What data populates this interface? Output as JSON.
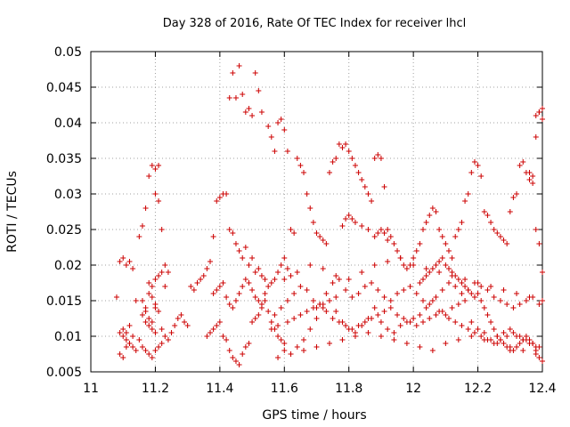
{
  "chart_data": {
    "type": "scatter",
    "title": "Day 328 of 2016, Rate Of TEC Index for receiver lhcl",
    "xlabel": "GPS time / hours",
    "ylabel": "ROTI / TECUs",
    "xlim": [
      11,
      12.4
    ],
    "ylim": [
      0.005,
      0.05
    ],
    "xticks": [
      "11",
      "11.2",
      "11.4",
      "11.6",
      "11.8",
      "12",
      "12.2",
      "12.4"
    ],
    "yticks": [
      "0.005",
      "0.01",
      "0.015",
      "0.02",
      "0.025",
      "0.03",
      "0.035",
      "0.04",
      "0.045",
      "0.05"
    ],
    "grid": true,
    "marker": "+",
    "color": "#cc0000",
    "series": [
      {
        "name": "ROTI",
        "x": [
          11.08,
          11.09,
          11.1,
          11.11,
          11.12,
          11.13,
          11.14,
          11.09,
          11.1,
          11.11,
          11.12,
          11.13,
          11.14,
          11.1,
          11.11,
          11.12,
          11.13,
          11.09,
          11.1,
          11.11,
          11.12,
          11.15,
          11.16,
          11.17,
          11.18,
          11.19,
          11.2,
          11.21,
          11.16,
          11.17,
          11.18,
          11.19,
          11.2,
          11.17,
          11.18,
          11.19,
          11.2,
          11.15,
          11.16,
          11.17,
          11.18,
          11.19,
          11.2,
          11.21,
          11.22,
          11.16,
          11.17,
          11.18,
          11.19,
          11.2,
          11.21,
          11.18,
          11.19,
          11.2,
          11.21,
          11.22,
          11.23,
          11.2,
          11.21,
          11.22,
          11.23,
          11.24,
          11.22,
          11.23,
          11.24,
          11.25,
          11.26,
          11.27,
          11.28,
          11.29,
          11.3,
          11.31,
          11.32,
          11.33,
          11.34,
          11.35,
          11.36,
          11.37,
          11.38,
          11.39,
          11.4,
          11.41,
          11.42,
          11.43,
          11.44,
          11.45,
          11.46,
          11.47,
          11.48,
          11.49,
          11.5,
          11.51,
          11.52,
          11.53,
          11.54,
          11.43,
          11.44,
          11.45,
          11.46,
          11.47,
          11.48,
          11.49,
          11.5,
          11.51,
          11.52,
          11.53,
          11.36,
          11.37,
          11.38,
          11.39,
          11.4,
          11.41,
          11.42,
          11.43,
          11.44,
          11.45,
          11.46,
          11.47,
          11.48,
          11.49,
          11.5,
          11.51,
          11.52,
          11.53,
          11.54,
          11.55,
          11.56,
          11.57,
          11.58,
          11.59,
          11.6,
          11.38,
          11.39,
          11.4,
          11.41,
          11.42,
          11.43,
          11.44,
          11.45,
          11.46,
          11.47,
          11.48,
          11.49,
          11.5,
          11.51,
          11.52,
          11.53,
          11.54,
          11.55,
          11.56,
          11.57,
          11.58,
          11.59,
          11.6,
          11.61,
          11.62,
          11.55,
          11.56,
          11.57,
          11.58,
          11.59,
          11.6,
          11.61,
          11.62,
          11.63,
          11.64,
          11.65,
          11.66,
          11.67,
          11.68,
          11.69,
          11.7,
          11.71,
          11.72,
          11.73,
          11.74,
          11.75,
          11.76,
          11.77,
          11.78,
          11.79,
          11.8,
          11.81,
          11.82,
          11.83,
          11.84,
          11.85,
          11.86,
          11.87,
          11.88,
          11.89,
          11.9,
          11.91,
          11.92,
          11.93,
          11.94,
          11.95,
          11.96,
          11.97,
          11.98,
          11.99,
          12.0,
          12.01,
          12.02,
          12.03,
          12.04,
          12.05,
          12.06,
          12.07,
          12.08,
          12.09,
          12.1,
          12.11,
          12.12,
          12.13,
          12.14,
          12.15,
          12.16,
          12.17,
          12.18,
          12.19,
          12.2,
          12.21,
          12.22,
          12.23,
          12.24,
          12.25,
          12.26,
          12.27,
          12.28,
          12.29,
          12.3,
          12.31,
          12.32,
          12.33,
          12.34,
          12.35,
          12.36,
          12.37,
          12.38,
          12.39,
          12.4,
          11.56,
          11.58,
          11.6,
          11.62,
          11.64,
          11.66,
          11.68,
          11.7,
          11.72,
          11.74,
          11.76,
          11.78,
          11.8,
          11.82,
          11.84,
          11.86,
          11.88,
          11.9,
          11.92,
          11.94,
          11.96,
          11.98,
          12.0,
          12.02,
          12.04,
          12.06,
          12.08,
          12.1,
          12.12,
          12.14,
          12.16,
          12.18,
          12.2,
          12.22,
          12.24,
          12.26,
          12.28,
          12.3,
          12.32,
          12.34,
          12.36,
          12.38,
          11.57,
          11.59,
          11.61,
          11.63,
          11.65,
          11.67,
          11.69,
          11.71,
          11.73,
          11.75,
          11.77,
          11.79,
          11.81,
          11.83,
          11.85,
          11.87,
          11.89,
          11.91,
          11.93,
          11.95,
          11.97,
          11.99,
          12.01,
          12.03,
          12.05,
          12.07,
          12.09,
          12.11,
          12.13,
          12.15,
          12.17,
          12.19,
          12.21,
          12.23,
          12.25,
          12.27,
          12.29,
          12.31,
          12.33,
          12.35,
          12.37,
          12.39,
          11.58,
          11.62,
          11.66,
          11.7,
          11.74,
          11.78,
          11.82,
          11.86,
          11.9,
          11.94,
          11.98,
          12.02,
          12.06,
          12.1,
          12.14,
          12.18,
          12.22,
          12.26,
          12.3,
          12.34,
          12.38,
          11.6,
          11.64,
          11.68,
          11.72,
          11.76,
          11.8,
          11.84,
          11.88,
          11.92,
          11.96,
          12.0,
          12.04,
          12.08,
          12.12,
          12.16,
          12.2,
          12.24,
          12.28,
          12.32,
          12.36,
          12.4,
          11.61,
          11.63,
          11.65,
          11.67,
          11.69,
          11.71,
          11.73,
          11.75,
          11.77,
          11.79,
          11.81,
          11.83,
          11.85,
          11.87,
          11.89,
          11.91,
          11.93,
          11.95,
          11.97,
          11.99,
          12.01,
          12.03,
          12.05,
          12.07,
          12.09,
          12.11,
          12.13,
          12.15,
          12.17,
          12.19,
          12.21,
          12.23,
          12.25,
          12.27,
          12.29,
          12.31,
          12.33,
          12.35,
          12.37,
          12.39,
          12.2,
          12.21,
          12.22,
          12.23,
          12.24,
          12.25,
          12.26,
          12.27,
          12.28,
          12.29,
          12.3,
          12.31,
          12.32,
          12.33,
          12.34,
          12.35,
          12.36,
          12.37,
          12.38,
          12.39,
          12.4,
          12.36,
          12.37,
          12.38,
          12.39,
          12.4,
          12.38,
          12.39,
          12.4,
          11.78,
          11.79,
          11.8,
          11.81,
          11.82,
          11.84,
          11.86,
          11.88,
          11.89,
          11.9,
          11.91,
          11.92,
          11.7,
          11.72,
          11.74,
          11.76,
          12.02,
          12.03,
          12.04,
          12.05,
          12.06,
          12.07,
          12.08,
          12.09,
          12.1,
          12.11,
          12.12,
          12.13,
          12.14,
          12.15,
          12.16,
          12.17,
          12.18,
          12.19
        ],
        "y": [
          0.0155,
          0.0205,
          0.021,
          0.02,
          0.0205,
          0.0195,
          0.015,
          0.0105,
          0.01,
          0.0095,
          0.009,
          0.0085,
          0.008,
          0.011,
          0.0105,
          0.0115,
          0.01,
          0.0075,
          0.007,
          0.0085,
          0.009,
          0.024,
          0.0255,
          0.028,
          0.0325,
          0.034,
          0.0335,
          0.034,
          0.015,
          0.014,
          0.016,
          0.0155,
          0.0145,
          0.012,
          0.0115,
          0.011,
          0.0105,
          0.0095,
          0.0085,
          0.008,
          0.0075,
          0.007,
          0.008,
          0.0085,
          0.009,
          0.013,
          0.0135,
          0.0125,
          0.012,
          0.014,
          0.0135,
          0.0175,
          0.017,
          0.018,
          0.0185,
          0.019,
          0.017,
          0.03,
          0.029,
          0.025,
          0.02,
          0.019,
          0.011,
          0.01,
          0.0095,
          0.0105,
          0.0115,
          0.0125,
          0.013,
          0.012,
          0.0115,
          0.017,
          0.0165,
          0.0175,
          0.018,
          0.0185,
          0.0195,
          0.0205,
          0.024,
          0.029,
          0.0295,
          0.03,
          0.03,
          0.025,
          0.0245,
          0.023,
          0.022,
          0.021,
          0.0225,
          0.02,
          0.021,
          0.019,
          0.0195,
          0.0185,
          0.018,
          0.0435,
          0.047,
          0.0435,
          0.048,
          0.044,
          0.0415,
          0.042,
          0.041,
          0.047,
          0.0445,
          0.0415,
          0.01,
          0.0105,
          0.011,
          0.0115,
          0.012,
          0.01,
          0.0095,
          0.008,
          0.007,
          0.0065,
          0.006,
          0.0075,
          0.0085,
          0.009,
          0.012,
          0.0125,
          0.013,
          0.014,
          0.015,
          0.0135,
          0.012,
          0.011,
          0.01,
          0.0095,
          0.009,
          0.016,
          0.0165,
          0.017,
          0.0175,
          0.0155,
          0.0145,
          0.014,
          0.015,
          0.016,
          0.017,
          0.018,
          0.0175,
          0.0165,
          0.0155,
          0.015,
          0.0145,
          0.016,
          0.017,
          0.0175,
          0.018,
          0.019,
          0.02,
          0.021,
          0.0195,
          0.0185,
          0.0395,
          0.038,
          0.036,
          0.04,
          0.0405,
          0.039,
          0.036,
          0.025,
          0.0245,
          0.035,
          0.034,
          0.033,
          0.03,
          0.028,
          0.026,
          0.0245,
          0.024,
          0.0235,
          0.023,
          0.033,
          0.0345,
          0.035,
          0.037,
          0.0365,
          0.037,
          0.036,
          0.035,
          0.034,
          0.033,
          0.032,
          0.031,
          0.03,
          0.029,
          0.035,
          0.0355,
          0.035,
          0.031,
          0.025,
          0.024,
          0.023,
          0.022,
          0.021,
          0.02,
          0.0195,
          0.02,
          0.021,
          0.022,
          0.023,
          0.025,
          0.026,
          0.027,
          0.028,
          0.0275,
          0.025,
          0.024,
          0.023,
          0.022,
          0.021,
          0.024,
          0.025,
          0.026,
          0.029,
          0.03,
          0.033,
          0.0345,
          0.034,
          0.0325,
          0.0275,
          0.027,
          0.026,
          0.025,
          0.0245,
          0.024,
          0.0235,
          0.023,
          0.0275,
          0.0295,
          0.03,
          0.034,
          0.0345,
          0.033,
          0.032,
          0.0315,
          0.041,
          0.0415,
          0.042,
          0.011,
          0.0115,
          0.008,
          0.0075,
          0.0085,
          0.0095,
          0.011,
          0.0125,
          0.014,
          0.015,
          0.0135,
          0.012,
          0.011,
          0.0105,
          0.0115,
          0.0125,
          0.014,
          0.012,
          0.011,
          0.0105,
          0.0115,
          0.012,
          0.0125,
          0.013,
          0.014,
          0.015,
          0.0135,
          0.013,
          0.014,
          0.0145,
          0.015,
          0.012,
          0.011,
          0.0105,
          0.0095,
          0.01,
          0.0105,
          0.011,
          0.01,
          0.0095,
          0.009,
          0.0085,
          0.013,
          0.014,
          0.015,
          0.016,
          0.017,
          0.0165,
          0.015,
          0.0145,
          0.016,
          0.0175,
          0.018,
          0.0165,
          0.0155,
          0.016,
          0.017,
          0.0175,
          0.0165,
          0.0155,
          0.015,
          0.016,
          0.0165,
          0.017,
          0.016,
          0.015,
          0.0145,
          0.0155,
          0.0165,
          0.0175,
          0.017,
          0.016,
          0.0165,
          0.0175,
          0.017,
          0.0165,
          0.0155,
          0.015,
          0.0145,
          0.014,
          0.0145,
          0.015,
          0.0155,
          0.0145,
          0.007,
          0.0075,
          0.008,
          0.0085,
          0.009,
          0.0095,
          0.01,
          0.0105,
          0.01,
          0.0095,
          0.009,
          0.0085,
          0.008,
          0.009,
          0.0095,
          0.01,
          0.0095,
          0.009,
          0.0085,
          0.008,
          0.0075,
          0.018,
          0.019,
          0.02,
          0.0195,
          0.0185,
          0.018,
          0.019,
          0.02,
          0.0205,
          0.021,
          0.02,
          0.0195,
          0.019,
          0.0185,
          0.018,
          0.0175,
          0.017,
          0.0165,
          0.016,
          0.0155,
          0.015,
          0.012,
          0.0125,
          0.013,
          0.0135,
          0.014,
          0.0145,
          0.0135,
          0.0125,
          0.012,
          0.0115,
          0.011,
          0.0115,
          0.012,
          0.0125,
          0.013,
          0.0135,
          0.014,
          0.013,
          0.0125,
          0.012,
          0.0115,
          0.012,
          0.0125,
          0.013,
          0.0135,
          0.0125,
          0.012,
          0.0115,
          0.011,
          0.0105,
          0.01,
          0.0095,
          0.009,
          0.0095,
          0.01,
          0.0105,
          0.01,
          0.0095,
          0.009,
          0.0085,
          0.016,
          0.015,
          0.014,
          0.013,
          0.012,
          0.011,
          0.01,
          0.0095,
          0.009,
          0.0085,
          0.008,
          0.008,
          0.0085,
          0.009,
          0.0095,
          0.01,
          0.0095,
          0.009,
          0.008,
          0.007,
          0.0065,
          0.033,
          0.0325,
          0.038,
          0.0415,
          0.0405,
          0.025,
          0.023,
          0.019,
          0.0255,
          0.0265,
          0.027,
          0.0265,
          0.026,
          0.0255,
          0.025,
          0.024,
          0.0245,
          0.025,
          0.0245,
          0.0235,
          0.014,
          0.0145,
          0.015,
          0.0155,
          0.0175,
          0.018,
          0.0185,
          0.019,
          0.0195,
          0.02,
          0.0205,
          0.021,
          0.02,
          0.0195,
          0.019,
          0.0185,
          0.018,
          0.0175,
          0.017,
          0.0165,
          0.016,
          0.0155
        ]
      }
    ]
  }
}
